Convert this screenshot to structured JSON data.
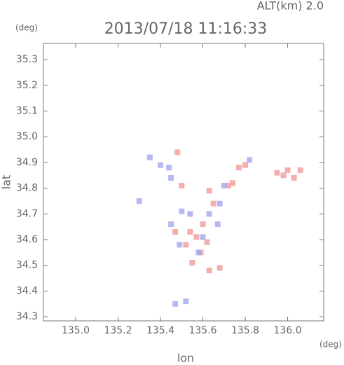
{
  "chart_data": {
    "type": "scatter",
    "altitude_label": "ALT(km) 2.0",
    "title": "2013/07/18 11:16:33",
    "y_unit": "(deg)",
    "x_unit": "(deg)",
    "ylabel": "lat",
    "xlabel": "lon",
    "xlim": [
      134.848,
      136.17
    ],
    "ylim": [
      34.284,
      35.363
    ],
    "xticks": [
      {
        "value": 135,
        "label": "135.0"
      },
      135.2,
      135.4,
      135.6,
      135.8,
      {
        "value": 136,
        "label": "136.0"
      }
    ],
    "yticks": [
      34.3,
      34.4,
      34.5,
      34.6,
      34.7,
      34.8,
      34.9,
      {
        "value": 35,
        "label": "35.0"
      },
      35.1,
      35.2,
      35.3
    ],
    "series": [
      {
        "color": "#f09a9a",
        "x": [
          136.0,
          135.98,
          135.95,
          136.03,
          136.06,
          135.8,
          135.77,
          135.72,
          135.74,
          135.63,
          135.6,
          135.57,
          135.54,
          135.52,
          135.59,
          135.55,
          135.68,
          135.63,
          135.62,
          135.48,
          135.5,
          135.65,
          135.47
        ],
        "y": [
          34.87,
          34.85,
          34.86,
          34.84,
          34.87,
          34.89,
          34.88,
          34.81,
          34.82,
          34.79,
          34.66,
          34.61,
          34.63,
          34.58,
          34.55,
          34.51,
          34.49,
          34.48,
          34.59,
          34.94,
          34.81,
          34.74,
          34.63
        ]
      },
      {
        "color": "#a3a8ee",
        "x": [
          135.35,
          135.4,
          135.44,
          135.3,
          135.45,
          135.5,
          135.54,
          135.63,
          135.68,
          135.7,
          135.82,
          135.6,
          135.67,
          135.58,
          135.49,
          135.45,
          135.47,
          135.52
        ],
        "y": [
          34.92,
          34.89,
          34.88,
          34.75,
          34.66,
          34.71,
          34.7,
          34.7,
          34.74,
          34.81,
          34.91,
          34.61,
          34.66,
          34.55,
          34.58,
          34.84,
          34.35,
          34.36
        ]
      }
    ]
  }
}
